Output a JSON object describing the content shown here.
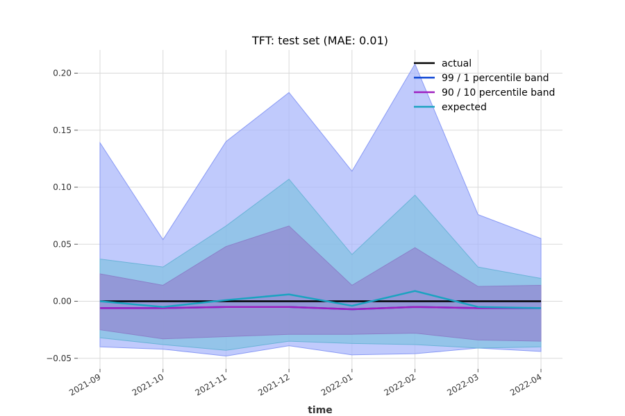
{
  "chart_data": {
    "type": "line",
    "title": "TFT: test set (MAE: 0.01)",
    "xlabel": "time",
    "ylabel": "",
    "x": [
      "2021-09",
      "2021-10",
      "2021-11",
      "2021-12",
      "2022-01",
      "2022-02",
      "2022-03",
      "2022-04"
    ],
    "ylim": [
      -0.06,
      0.22
    ],
    "yticks": [
      -0.05,
      0.0,
      0.05,
      0.1,
      0.15,
      0.2
    ],
    "ytick_labels": [
      "−0.05",
      "0.00",
      "0.05",
      "0.10",
      "0.15",
      "0.20"
    ],
    "grid": true,
    "legend_position": "top-right",
    "series": [
      {
        "name": "actual",
        "color": "#000000",
        "values": [
          0.0,
          0.0,
          0.0,
          0.0,
          0.0,
          0.0,
          0.0,
          0.0
        ]
      },
      {
        "name": "99 / 1 percentile band",
        "color": "#0a44d4",
        "values": [
          -0.006,
          -0.006,
          -0.005,
          -0.005,
          -0.007,
          -0.005,
          -0.006,
          -0.006
        ]
      },
      {
        "name": "90 / 10 percentile band",
        "color": "#9e1fc0",
        "values": [
          -0.006,
          -0.006,
          -0.005,
          -0.005,
          -0.007,
          -0.005,
          -0.006,
          -0.006
        ]
      },
      {
        "name": "expected",
        "color": "#1aa3c0",
        "values": [
          0.0,
          -0.005,
          0.001,
          0.006,
          -0.004,
          0.009,
          -0.005,
          -0.006
        ]
      }
    ],
    "bands": [
      {
        "series": "99 / 1 percentile band",
        "upper": [
          0.139,
          0.054,
          0.14,
          0.183,
          0.114,
          0.208,
          0.076,
          0.055
        ],
        "lower": [
          -0.04,
          -0.042,
          -0.048,
          -0.039,
          -0.047,
          -0.046,
          -0.041,
          -0.044
        ],
        "fill": "#a8b6fb",
        "edge": "#8899f5",
        "opacity": 0.72
      },
      {
        "series": "expected",
        "upper": [
          0.037,
          0.03,
          0.066,
          0.107,
          0.041,
          0.093,
          0.03,
          0.02
        ],
        "lower": [
          -0.032,
          -0.038,
          -0.043,
          -0.035,
          -0.037,
          -0.038,
          -0.041,
          -0.04
        ],
        "fill": "#7cc0df",
        "edge": "#6ab3d7",
        "opacity": 0.65
      },
      {
        "series": "90 / 10 percentile band",
        "upper": [
          0.024,
          0.014,
          0.048,
          0.066,
          0.014,
          0.047,
          0.013,
          0.014
        ],
        "lower": [
          -0.025,
          -0.033,
          -0.031,
          -0.029,
          -0.029,
          -0.028,
          -0.034,
          -0.035
        ],
        "fill": "#9389d0",
        "edge": "#8a80c9",
        "opacity": 0.75
      }
    ]
  }
}
